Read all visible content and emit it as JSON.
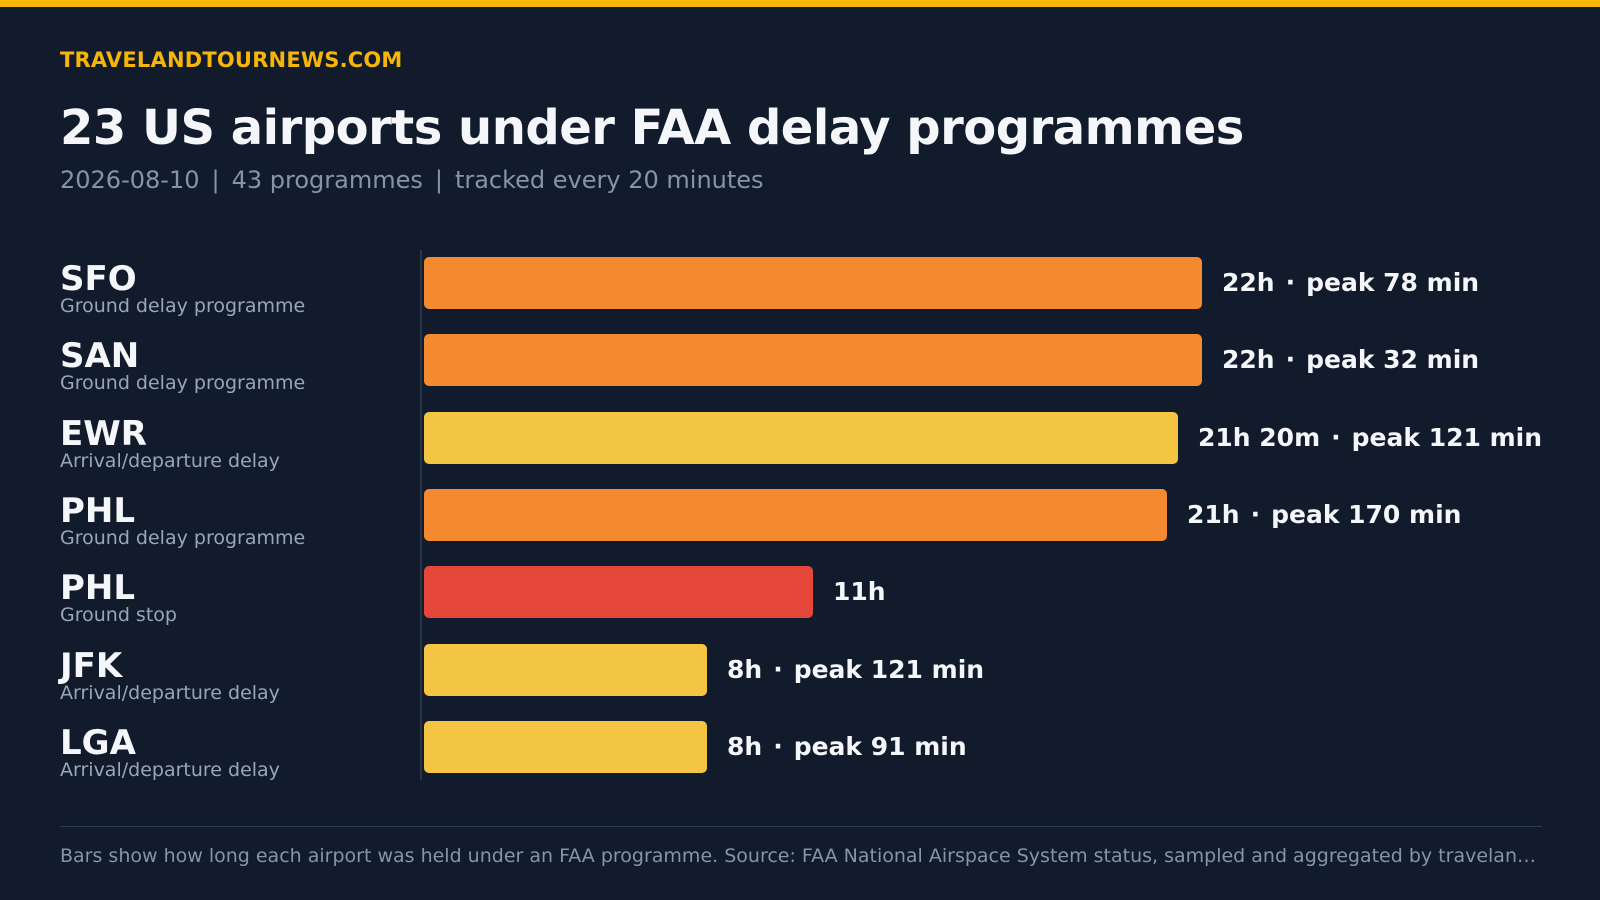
{
  "brand": "TRAVELANDTOURNEWS.COM",
  "title": "23 US airports under FAA delay programmes",
  "subtitle": {
    "date": "2026-08-10",
    "count": "43 programmes",
    "frequency": "tracked every 20 minutes"
  },
  "footnote": "Bars show how long each airport was held under an FAA programme. Source: FAA National Airspace System status, sampled and aggregated by travelandtournews.com",
  "colors": {
    "accent": "#f5b50a",
    "background": "#111b2c",
    "ground_delay_programme": "#f4892f",
    "arrival_departure_delay": "#f4c542",
    "ground_stop": "#e5473b"
  },
  "chart_data": {
    "type": "bar",
    "orientation": "horizontal",
    "value_unit": "hours",
    "xlim": [
      0,
      22
    ],
    "grid": false,
    "rows": [
      {
        "airport": "SFO",
        "programme": "Ground delay programme",
        "hours": 22,
        "duration_label": "22h",
        "peak_label": "peak 78 min",
        "color": "#f4892f"
      },
      {
        "airport": "SAN",
        "programme": "Ground delay programme",
        "hours": 22,
        "duration_label": "22h",
        "peak_label": "peak 32 min",
        "color": "#f4892f"
      },
      {
        "airport": "EWR",
        "programme": "Arrival/departure delay",
        "hours": 21.333,
        "duration_label": "21h 20m",
        "peak_label": "peak 121 min",
        "color": "#f4c542"
      },
      {
        "airport": "PHL",
        "programme": "Ground delay programme",
        "hours": 21,
        "duration_label": "21h",
        "peak_label": "peak 170 min",
        "color": "#f4892f"
      },
      {
        "airport": "PHL",
        "programme": "Ground stop",
        "hours": 11,
        "duration_label": "11h",
        "peak_label": "",
        "color": "#e5473b"
      },
      {
        "airport": "JFK",
        "programme": "Arrival/departure delay",
        "hours": 8,
        "duration_label": "8h",
        "peak_label": "peak 121 min",
        "color": "#f4c542"
      },
      {
        "airport": "LGA",
        "programme": "Arrival/departure delay",
        "hours": 8,
        "duration_label": "8h",
        "peak_label": "peak 91 min",
        "color": "#f4c542"
      }
    ]
  }
}
